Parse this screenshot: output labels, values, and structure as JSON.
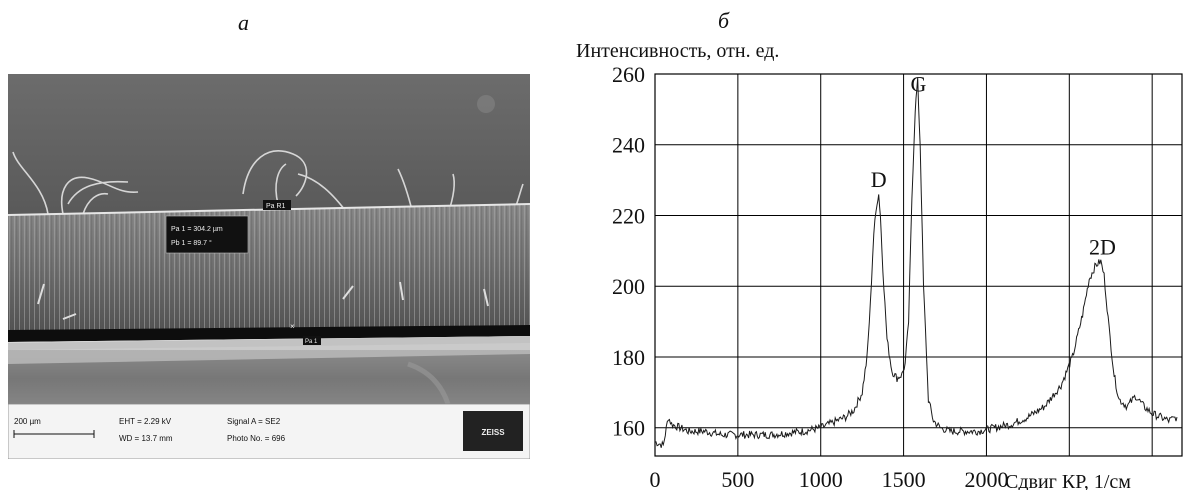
{
  "panel_labels": {
    "a": "а",
    "b": "б"
  },
  "sem_image": {
    "measurement_labels": [
      "Pa R1",
      "Pa 1 = 304.2 µm",
      "Pb 1 = 89.7 °",
      "Pa 1"
    ],
    "scale_bar_label": "200 µm",
    "info_bar": {
      "eht": "EHT = 2.29 kV",
      "wd": "WD = 13.7 mm",
      "signal": "Signal A = SE2",
      "photo": "Photo No. = 696",
      "logo": "ZEISS"
    }
  },
  "chart_data": {
    "type": "line",
    "ylabel": "Интенсивность, отн. ед.",
    "xlabel": "Сдвиг КР, 1/см",
    "xlim": [
      0,
      3180
    ],
    "ylim": [
      152,
      260
    ],
    "xticks": [
      0,
      500,
      1000,
      1500,
      2000
    ],
    "yticks": [
      160,
      180,
      200,
      220,
      240,
      260
    ],
    "grid": true,
    "annotations": [
      {
        "text": "D",
        "x": 1350,
        "y": 228
      },
      {
        "text": "G",
        "x": 1590,
        "y": 255
      },
      {
        "text": "2D",
        "x": 2700,
        "y": 209
      }
    ],
    "series": [
      {
        "x": [
          0,
          50,
          80,
          100,
          150,
          200,
          300,
          400,
          500,
          600,
          700,
          800,
          900,
          1000,
          1050,
          1100,
          1150,
          1200,
          1250,
          1280,
          1300,
          1320,
          1340,
          1350,
          1360,
          1375,
          1400,
          1430,
          1460,
          1490,
          1510,
          1530,
          1550,
          1570,
          1585,
          1600,
          1620,
          1650,
          1680,
          1720,
          1780,
          1850,
          1950,
          2050,
          2150,
          2250,
          2350,
          2450,
          2520,
          2580,
          2620,
          2660,
          2690,
          2710,
          2740,
          2770,
          2800,
          2850,
          2900,
          2950,
          3000,
          3050,
          3100,
          3150
        ],
        "y": [
          156,
          155,
          163,
          161,
          160,
          159,
          159,
          158,
          158,
          158,
          158,
          158.5,
          159,
          160,
          161,
          162,
          163,
          165,
          170,
          180,
          195,
          215,
          224,
          226,
          220,
          205,
          185,
          176,
          174,
          175,
          178,
          190,
          225,
          250,
          258,
          240,
          200,
          168,
          162,
          160,
          159,
          159,
          159,
          160,
          161,
          163,
          166,
          172,
          180,
          192,
          202,
          206,
          207,
          203,
          188,
          175,
          168,
          166,
          169,
          166,
          164,
          163,
          162,
          163
        ]
      }
    ]
  }
}
